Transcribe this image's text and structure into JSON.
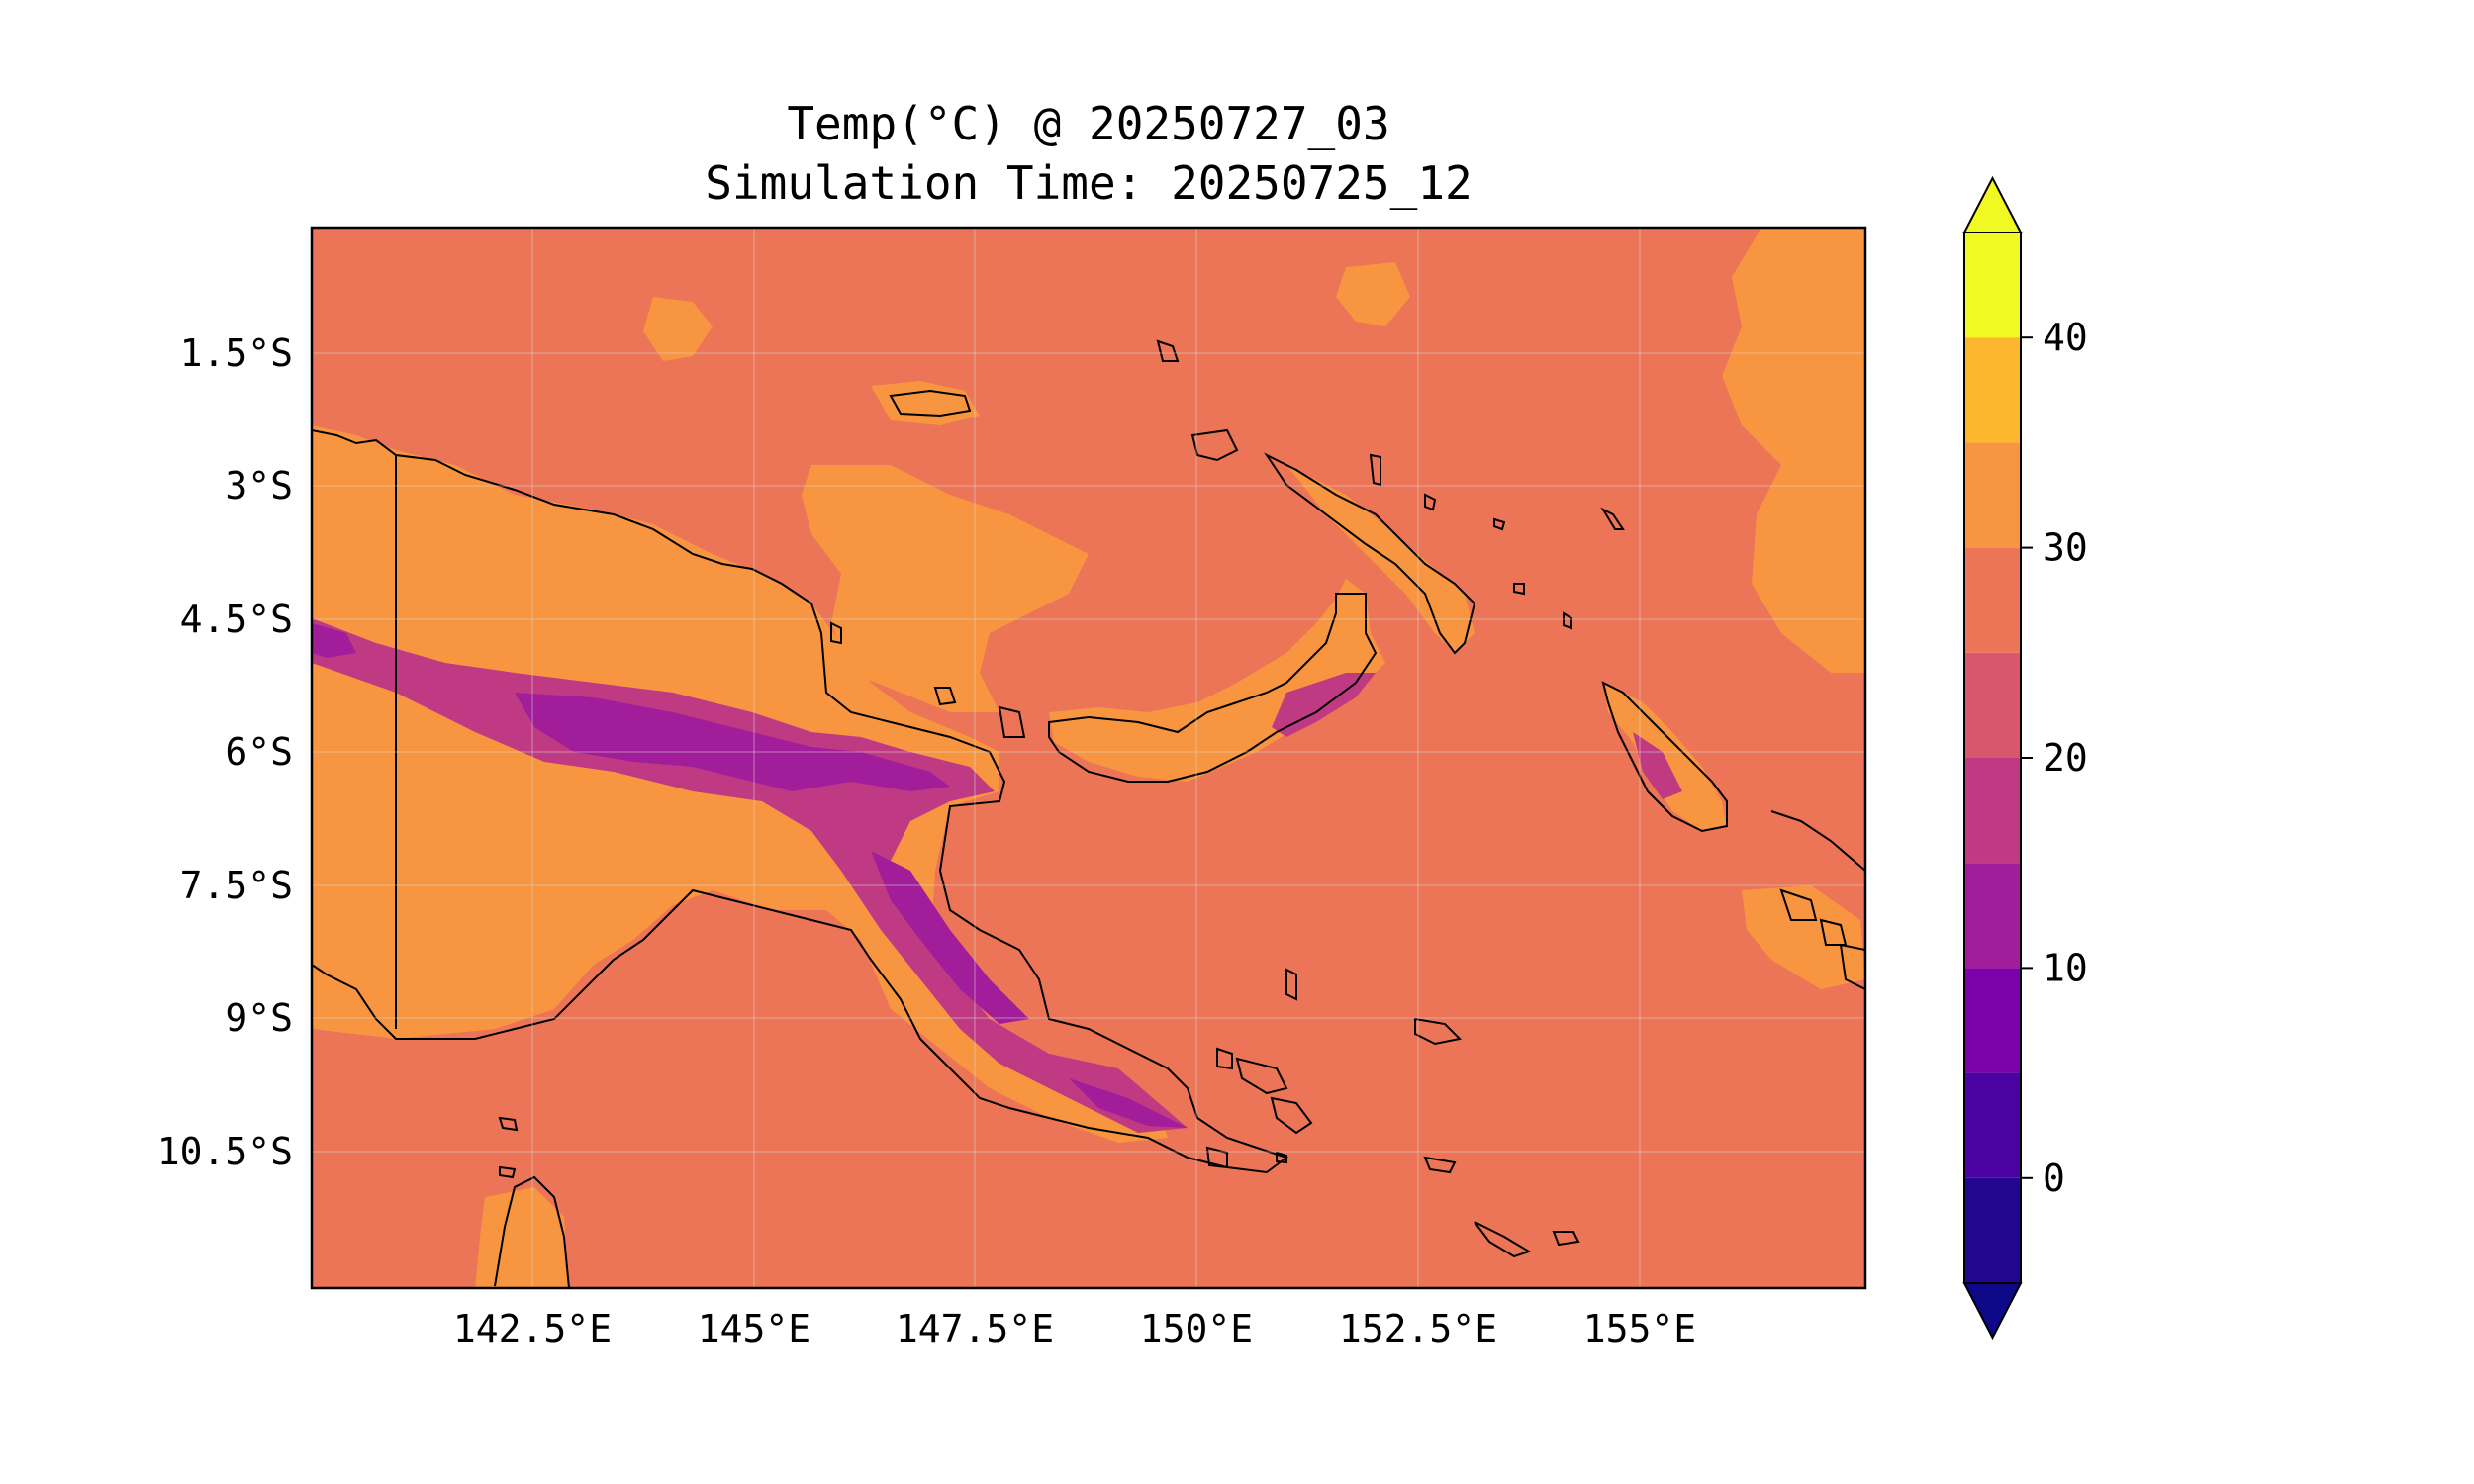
{
  "title": "Temp(°C) @ 20250727_03",
  "subtitle": "Simulation Time: 20250725_12",
  "map": {
    "lon_ticks": [
      "142.5°E",
      "145°E",
      "147.5°E",
      "150°E",
      "152.5°E",
      "155°E"
    ],
    "lat_ticks": [
      "1.5°S",
      "3°S",
      "4.5°S",
      "6°S",
      "7.5°S",
      "9°S",
      "10.5°S"
    ]
  },
  "colorbar": {
    "ticks": [
      "0",
      "10",
      "20",
      "30",
      "40"
    ],
    "levels": [
      -5,
      0,
      5,
      10,
      15,
      20,
      25,
      30,
      35,
      40,
      45
    ],
    "extend": "both",
    "colors": [
      "#220690",
      "#4a02a0",
      "#7a02a8",
      "#a21d9a",
      "#c03a83",
      "#d8576b",
      "#eb7556",
      "#f89540",
      "#fdb72f",
      "#f0f921"
    ],
    "under_color": "#0d0887"
  },
  "fill_colors": {
    "land_warm": "#f89540",
    "sea": "#eb7556",
    "highland": "#c03a83",
    "peak": "#a21d9a",
    "coast": "#000000"
  }
}
